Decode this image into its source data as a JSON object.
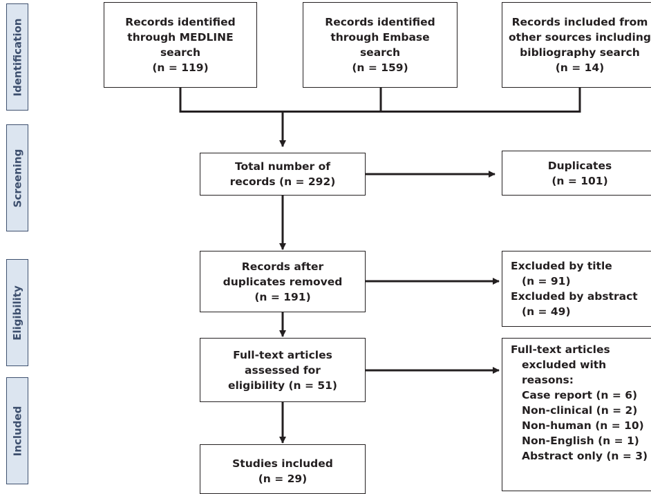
{
  "stages": {
    "identification": "Identification",
    "screening": "Screening",
    "eligibility": "Eligibility",
    "included": "Included"
  },
  "identification": {
    "medline": {
      "lines": [
        "Records identified",
        "through MEDLINE",
        "search",
        "(n = 119)"
      ]
    },
    "embase": {
      "lines": [
        "Records identified",
        "through Embase",
        "search",
        "(n = 159)"
      ]
    },
    "other": {
      "lines": [
        "Records included from",
        "other sources including",
        "bibliography search",
        "(n = 14)"
      ]
    }
  },
  "screening": {
    "total": {
      "lines": [
        "Total number of",
        "records (n = 292)"
      ]
    },
    "duplicates": {
      "lines": [
        "Duplicates",
        "(n = 101)"
      ]
    }
  },
  "eligibility": {
    "after_duplicates": {
      "lines": [
        "Records after",
        "duplicates removed",
        "(n = 191)"
      ]
    },
    "excluded": {
      "lines": [
        "Excluded by title",
        "(n = 91)",
        "Excluded by abstract",
        "(n = 49)"
      ]
    },
    "fulltext": {
      "lines": [
        "Full-text articles",
        "assessed for",
        "eligibility (n = 51)"
      ]
    },
    "fulltext_excluded": {
      "lines": [
        "Full-text articles",
        "excluded with",
        "reasons:",
        "Case report (n = 6)",
        "Non-clinical (n = 2)",
        "Non-human (n = 10)",
        "Non-English (n = 1)",
        "Abstract only (n = 3)"
      ]
    }
  },
  "included": {
    "studies": {
      "lines": [
        "Studies included",
        "(n = 29)"
      ]
    }
  },
  "colors": {
    "stage_fill": "#dce5f0",
    "stage_border": "#3d4f6e",
    "line": "#231f20"
  }
}
